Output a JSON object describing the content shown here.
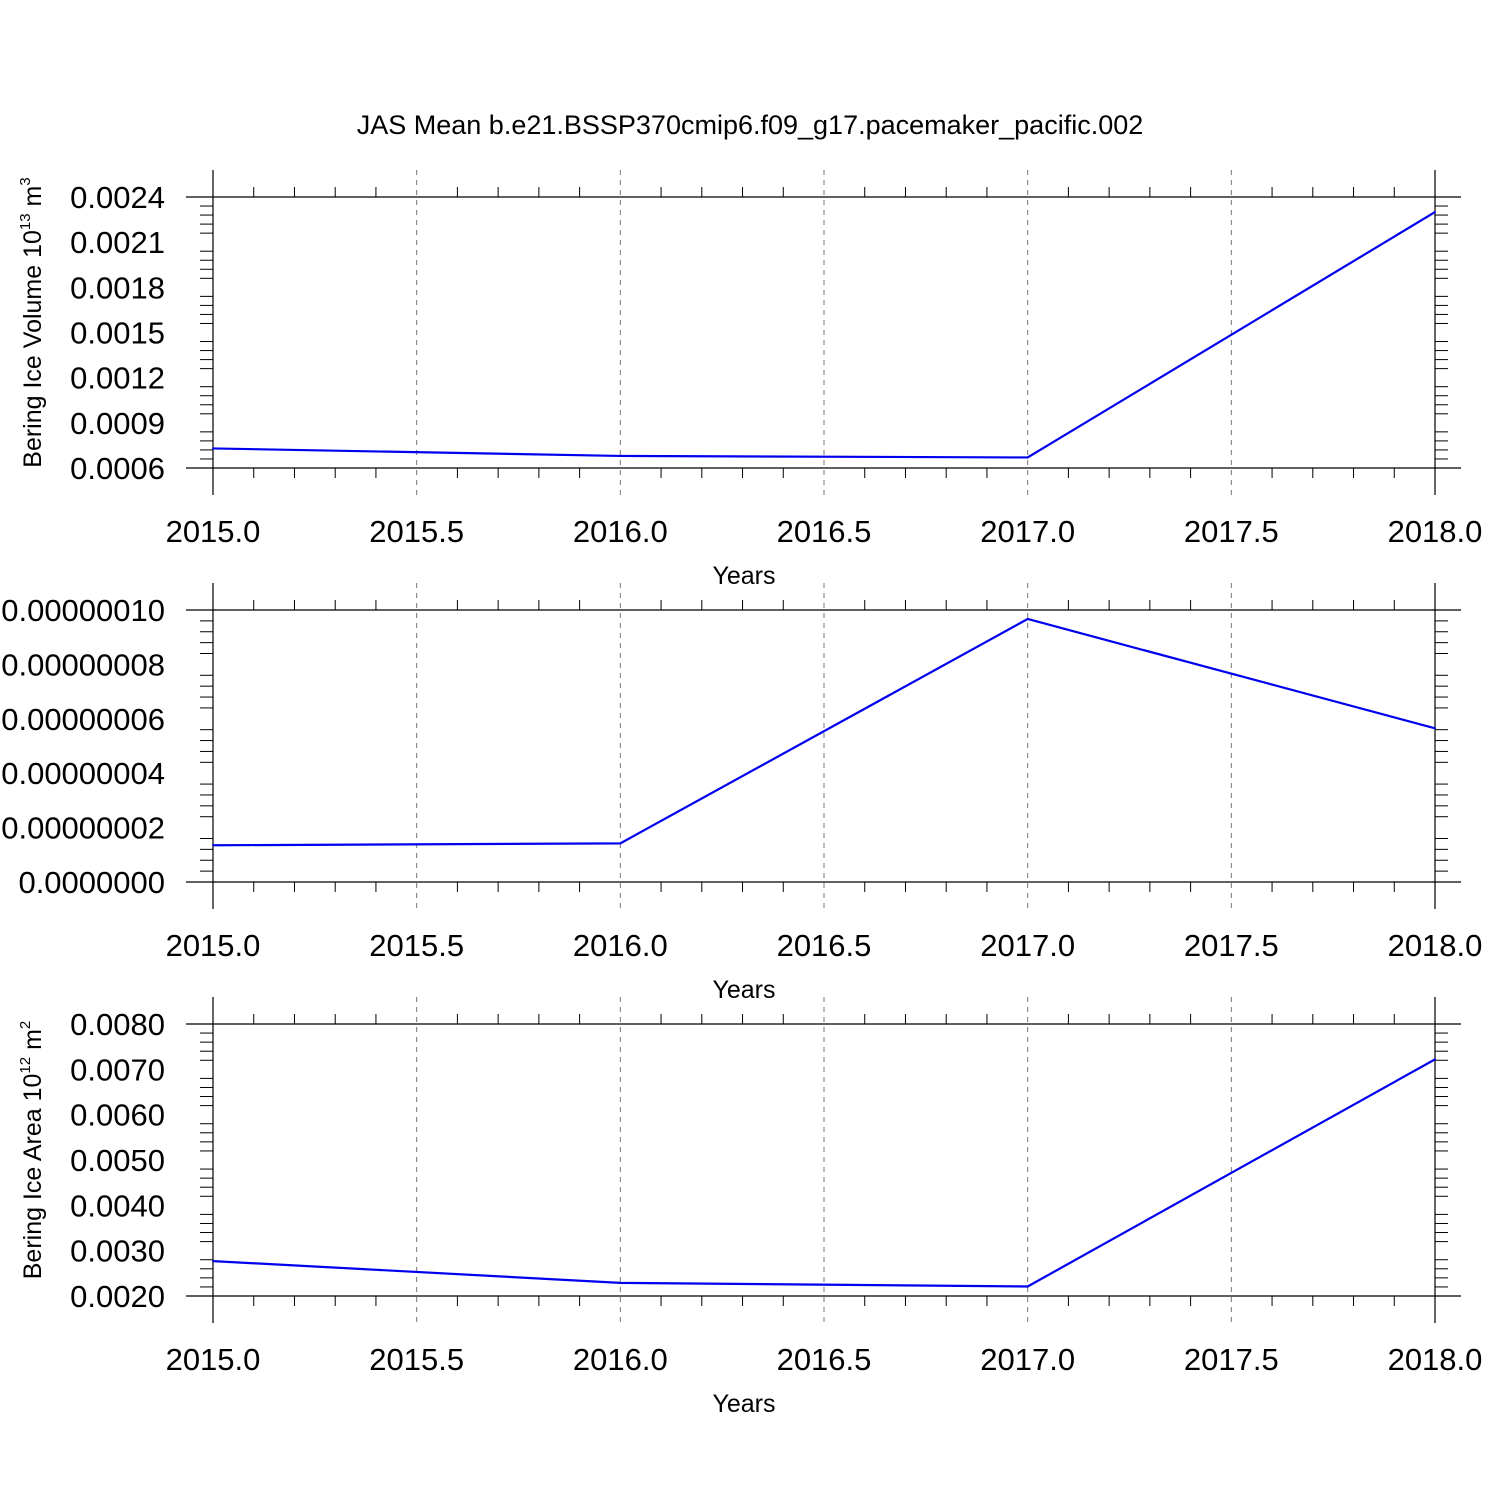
{
  "title": "JAS Mean b.e21.BSSP370cmip6.f09_g17.pacemaker_pacific.002",
  "colors": {
    "series": "#0000ee",
    "axis": "#000000",
    "grid": "#777777"
  },
  "chart_data": [
    {
      "type": "line",
      "xlabel": "Years",
      "ylabel": {
        "text": "Bering Ice Volume 10",
        "sup1": "13",
        "mid": " m",
        "sup2": "3"
      },
      "x": [
        2015,
        2016,
        2017,
        2018
      ],
      "xlim": [
        2015,
        2018
      ],
      "x_ticks": [
        2015.0,
        2015.5,
        2016.0,
        2016.5,
        2017.0,
        2017.5,
        2018.0
      ],
      "x_tick_labels": [
        "2015.0",
        "2015.5",
        "2016.0",
        "2016.5",
        "2017.0",
        "2017.5",
        "2018.0"
      ],
      "ylim": [
        0.0006,
        0.0024
      ],
      "y_ticks": [
        0.0006,
        0.0009,
        0.0012,
        0.0015,
        0.0018,
        0.0021,
        0.0024
      ],
      "y_tick_labels": [
        "0.0006",
        "0.0009",
        "0.0012",
        "0.0015",
        "0.0018",
        "0.0021",
        "0.0024"
      ],
      "series": [
        {
          "values": [
            0.00073,
            0.00068,
            0.00067,
            0.0023
          ]
        }
      ],
      "grid": "vertical dashed"
    },
    {
      "type": "line",
      "xlabel": "Years",
      "ylabel": null,
      "x": [
        2015,
        2016,
        2017,
        2018
      ],
      "xlim": [
        2015,
        2018
      ],
      "x_ticks": [
        2015.0,
        2015.5,
        2016.0,
        2016.5,
        2017.0,
        2017.5,
        2018.0
      ],
      "x_tick_labels": [
        "2015.0",
        "2015.5",
        "2016.0",
        "2016.5",
        "2017.0",
        "2017.5",
        "2018.0"
      ],
      "ylim": [
        0.0,
        1e-07
      ],
      "y_ticks": [
        0.0,
        2e-08,
        4e-08,
        6e-08,
        8e-08,
        1e-07
      ],
      "y_tick_labels": [
        "0.0000000",
        "0.00000002",
        "0.00000004",
        "0.00000006",
        "0.00000008",
        "0.00000010"
      ],
      "series": [
        {
          "values": [
            1.35e-08,
            1.42e-08,
            9.67e-08,
            5.65e-08
          ]
        }
      ],
      "grid": "vertical dashed"
    },
    {
      "type": "line",
      "xlabel": "Years",
      "ylabel": {
        "text": "Bering Ice Area 10",
        "sup1": "12",
        "mid": " m",
        "sup2": "2"
      },
      "x": [
        2015,
        2016,
        2017,
        2018
      ],
      "xlim": [
        2015,
        2018
      ],
      "x_ticks": [
        2015.0,
        2015.5,
        2016.0,
        2016.5,
        2017.0,
        2017.5,
        2018.0
      ],
      "x_tick_labels": [
        "2015.0",
        "2015.5",
        "2016.0",
        "2016.5",
        "2017.0",
        "2017.5",
        "2018.0"
      ],
      "ylim": [
        0.002,
        0.008
      ],
      "y_ticks": [
        0.002,
        0.003,
        0.004,
        0.005,
        0.006,
        0.007,
        0.008
      ],
      "y_tick_labels": [
        "0.0020",
        "0.0030",
        "0.0040",
        "0.0050",
        "0.0060",
        "0.0070",
        "0.0080"
      ],
      "series": [
        {
          "values": [
            0.00277,
            0.00229,
            0.00221,
            0.00722
          ]
        }
      ],
      "grid": "vertical dashed"
    }
  ]
}
